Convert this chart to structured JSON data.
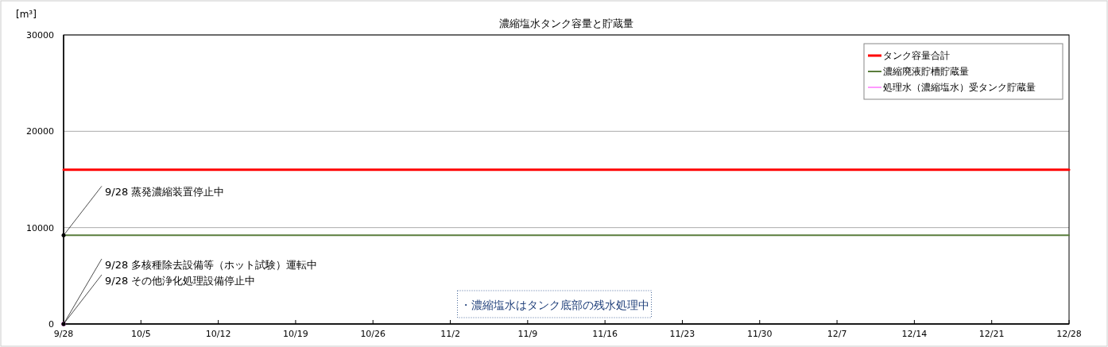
{
  "chart_data": {
    "type": "line",
    "title": "濃縮塩水タンク容量と貯蔵量",
    "ylabel": "[m³]",
    "xlim": [
      "--09-28",
      "--12-28"
    ],
    "xticks": [
      {
        "value": "--09-28",
        "label": "9/28"
      },
      {
        "value": "--10-05",
        "label": "10/5"
      },
      {
        "value": "--10-12",
        "label": "10/12"
      },
      {
        "value": "--10-19",
        "label": "10/19"
      },
      {
        "value": "--10-26",
        "label": "10/26"
      },
      {
        "value": "--11-02",
        "label": "11/2"
      },
      {
        "value": "--11-09",
        "label": "11/9"
      },
      {
        "value": "--11-16",
        "label": "11/16"
      },
      {
        "value": "--11-23",
        "label": "11/23"
      },
      {
        "value": "--11-30",
        "label": "11/30"
      },
      {
        "value": "--12-07",
        "label": "12/7"
      },
      {
        "value": "--12-14",
        "label": "12/14"
      },
      {
        "value": "--12-21",
        "label": "12/21"
      },
      {
        "value": "--12-28",
        "label": "12/28"
      }
    ],
    "ylim": [
      0,
      30000
    ],
    "yticks": [
      0,
      10000,
      20000,
      30000
    ],
    "grid": "y",
    "legend": "top right",
    "line_style": "solid",
    "series": [
      {
        "name": "タンク容量合計",
        "color": "#ff0000",
        "x": [
          "--09-28",
          "--12-28"
        ],
        "values": [
          16000,
          16000
        ]
      },
      {
        "name": "濃縮廃液貯槽貯蔵量",
        "color": "#5a7d3c",
        "x": [
          "--09-28",
          "--12-28"
        ],
        "values": [
          9200,
          9200
        ]
      },
      {
        "name": "処理水（濃縮塩水）受タンク貯蔵量",
        "color": "#ff99ff",
        "marker": "circle",
        "x": [
          "--09-28"
        ],
        "values": [
          0
        ]
      }
    ],
    "annotations": [
      {
        "text": "9/28  蒸発濃縮装置停止中",
        "x": "--09-28",
        "y": 9200
      },
      {
        "text": "9/28  多核種除去設備等（ホット試験）運転中",
        "x": "--09-28",
        "y": 0
      },
      {
        "text": "9/28  その他浄化処理設備停止中",
        "x": "--09-28",
        "y": 0
      },
      "・濃縮塩水はタンク底部の残水処理中"
    ]
  }
}
